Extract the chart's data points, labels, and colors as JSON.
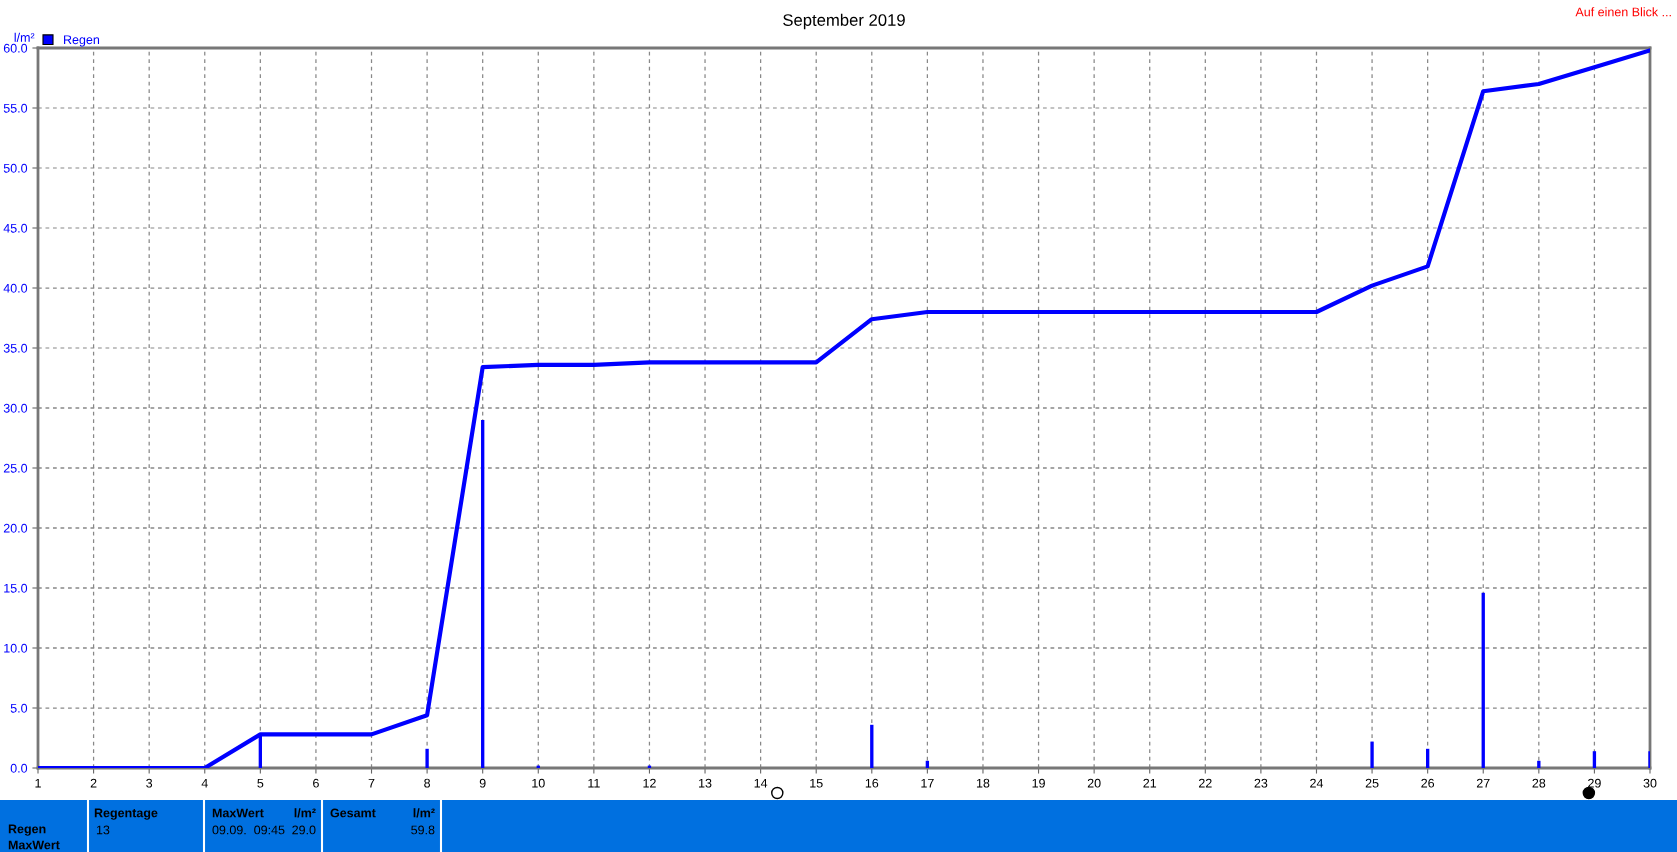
{
  "chart_data": {
    "type": "bar",
    "title": "September 2019",
    "ylabel": "l/m²",
    "x": [
      1,
      2,
      3,
      4,
      5,
      6,
      7,
      8,
      9,
      10,
      11,
      12,
      13,
      14,
      15,
      16,
      17,
      18,
      19,
      20,
      21,
      22,
      23,
      24,
      25,
      26,
      27,
      28,
      29,
      30
    ],
    "series": [
      {
        "type": "line",
        "color": "#0000ff",
        "values": [
          0,
          0,
          0,
          0,
          2.8,
          2.8,
          2.8,
          4.4,
          33.4,
          33.6,
          33.6,
          33.8,
          33.8,
          33.8,
          33.8,
          37.4,
          38.0,
          38.0,
          38.0,
          38.0,
          38.0,
          38.0,
          38.0,
          38.0,
          40.2,
          41.8,
          56.4,
          57.0,
          58.4,
          59.8
        ]
      },
      {
        "name": "Regen",
        "color": "#0000ff",
        "values": [
          null,
          null,
          null,
          null,
          2.8,
          null,
          null,
          1.6,
          29.0,
          0.2,
          null,
          0.2,
          null,
          null,
          null,
          3.6,
          0.6,
          null,
          null,
          null,
          null,
          null,
          null,
          null,
          2.2,
          1.6,
          14.6,
          0.6,
          1.4,
          1.4
        ]
      }
    ],
    "xlim": [
      1,
      30
    ],
    "xticks": [
      1,
      2,
      3,
      4,
      5,
      6,
      7,
      8,
      9,
      10,
      11,
      12,
      13,
      14,
      15,
      16,
      17,
      18,
      19,
      20,
      21,
      22,
      23,
      24,
      25,
      26,
      27,
      28,
      29,
      30
    ],
    "ylim": [
      0,
      60
    ],
    "yticks": [
      {
        "value": 0,
        "label": "0.0"
      },
      {
        "value": 5,
        "label": "5.0"
      },
      {
        "value": 10,
        "label": "10.0"
      },
      {
        "value": 15,
        "label": "15.0"
      },
      {
        "value": 20,
        "label": "20.0"
      },
      {
        "value": 25,
        "label": "25.0"
      },
      {
        "value": 30,
        "label": "30.0"
      },
      {
        "value": 35,
        "label": "35.0"
      },
      {
        "value": 40,
        "label": "40.0"
      },
      {
        "value": 45,
        "label": "45.0"
      },
      {
        "value": 50,
        "label": "50.0"
      },
      {
        "value": 55,
        "label": "55.0"
      },
      {
        "value": 60,
        "label": "60.0"
      }
    ],
    "grid": true,
    "legend": "top left",
    "annotations": [
      "Auf einen Blick ...",
      "Regen",
      "MaxWert",
      "Regentage",
      "13",
      "MaxWert",
      "l/m²",
      "09.09.  09:45",
      "29.0",
      "Gesamt",
      "l/m²",
      "59.8"
    ]
  }
}
